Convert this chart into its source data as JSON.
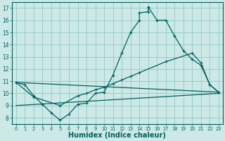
{
  "xlabel": "Humidex (Indice chaleur)",
  "bg_color": "#cce9e7",
  "grid_color": "#99ccc9",
  "line_color": "#006060",
  "xlim": [
    -0.5,
    23.5
  ],
  "ylim": [
    7.5,
    17.5
  ],
  "xticks": [
    0,
    1,
    2,
    3,
    4,
    5,
    6,
    7,
    8,
    9,
    10,
    11,
    12,
    13,
    14,
    15,
    16,
    17,
    18,
    19,
    20,
    21,
    22,
    23
  ],
  "yticks": [
    8,
    9,
    10,
    11,
    12,
    13,
    14,
    15,
    16,
    17
  ],
  "curve1_x": [
    0,
    1,
    2,
    3,
    4,
    5,
    6,
    7,
    8,
    9,
    10,
    11,
    12,
    13,
    14,
    14,
    15,
    15,
    16,
    17,
    18,
    19,
    20,
    21,
    22,
    23
  ],
  "curve1_y": [
    10.9,
    10.7,
    9.8,
    9.1,
    8.4,
    7.8,
    8.3,
    9.1,
    9.2,
    10.0,
    10.1,
    11.5,
    13.3,
    15.0,
    16.0,
    16.6,
    16.7,
    17.1,
    16.0,
    16.0,
    14.7,
    13.5,
    12.8,
    12.3,
    10.7,
    10.1
  ],
  "curve2_x": [
    0,
    2,
    5,
    7,
    8,
    9,
    10,
    11,
    12,
    13,
    14,
    17,
    20,
    21,
    22,
    23
  ],
  "curve2_y": [
    10.9,
    9.7,
    9.0,
    9.8,
    10.0,
    10.3,
    10.5,
    10.8,
    11.1,
    11.4,
    11.7,
    12.6,
    13.3,
    12.5,
    10.7,
    10.1
  ],
  "line3_x": [
    0,
    23
  ],
  "line3_y": [
    10.9,
    10.1
  ],
  "line4_x": [
    0,
    23
  ],
  "line4_y": [
    9.0,
    10.0
  ]
}
